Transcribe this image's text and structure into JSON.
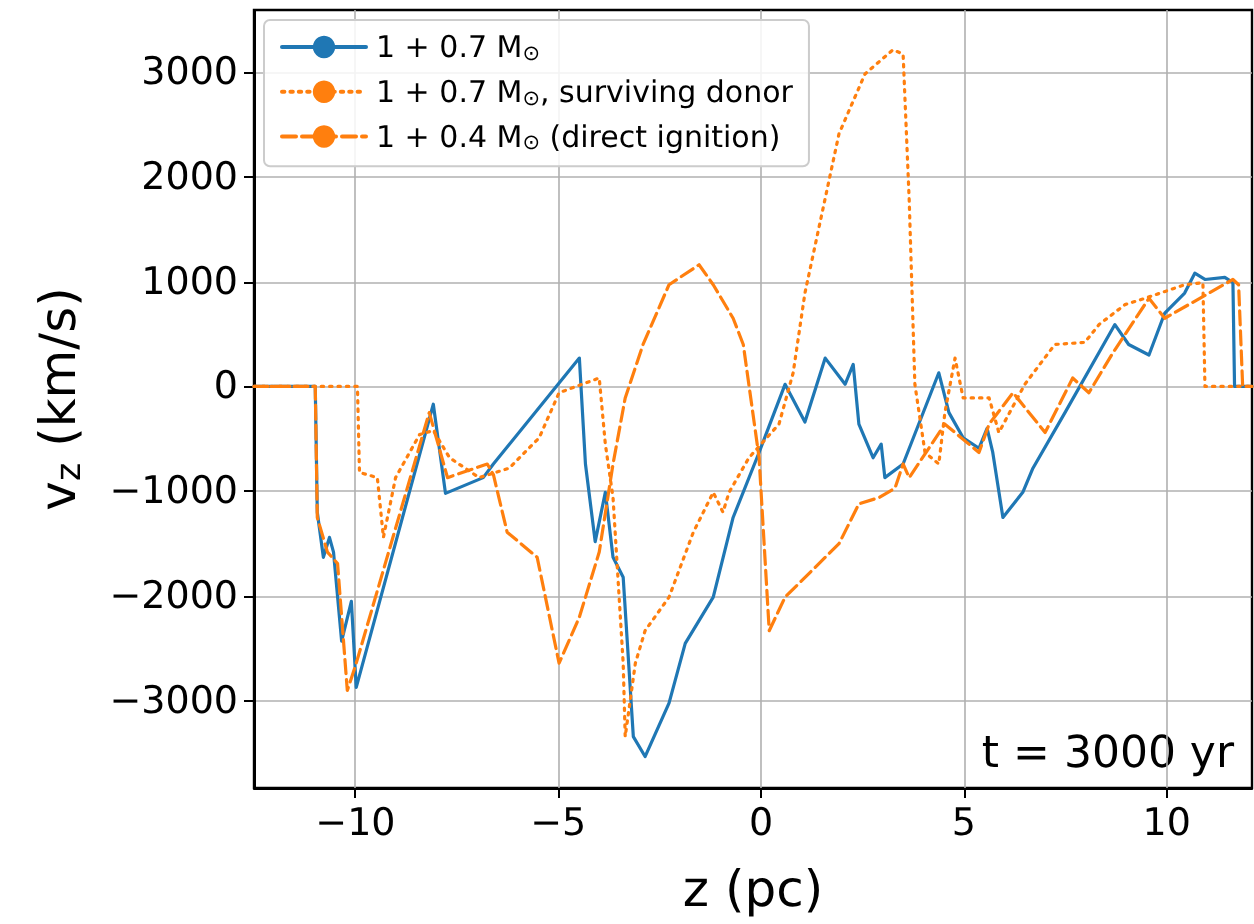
{
  "chart_data": {
    "type": "line",
    "xlabel": "z (pc)",
    "ylabel": "v$_{z}$ (km/s)",
    "xlim": [
      -12.5,
      12.1
    ],
    "xticks": [
      -10,
      -5,
      0,
      5,
      10
    ],
    "ylim": [
      -3830,
      3590
    ],
    "yticks": [
      -3000,
      -2000,
      -1000,
      0,
      1000,
      2000,
      3000
    ],
    "grid": true,
    "legend": "top left",
    "marker": "none",
    "annotations": [
      "t = 3000 yr"
    ],
    "series": [
      {
        "name": "1 + 0.7 M$_{⊙}$",
        "color": "#1f77b4",
        "line_style": "solid",
        "x": [
          -12.5,
          -10.99,
          -10.94,
          -10.79,
          -10.64,
          -10.54,
          -10.34,
          -10.1,
          -9.98,
          -8.08,
          -7.78,
          -6.85,
          -6.6,
          -4.48,
          -4.33,
          -4.09,
          -3.84,
          -3.65,
          -3.4,
          -3.15,
          -2.86,
          -2.27,
          -1.87,
          -1.18,
          -0.69,
          -0.05,
          0.59,
          1.08,
          1.58,
          2.07,
          2.27,
          2.41,
          2.76,
          2.96,
          3.05,
          3.5,
          4.38,
          4.63,
          4.98,
          5.37,
          5.57,
          5.71,
          5.96,
          6.45,
          6.7,
          7.49,
          8.72,
          9.06,
          9.56,
          9.95,
          10.44,
          10.69,
          10.94,
          11.43,
          11.63,
          11.67,
          12.1
        ],
        "values": [
          0,
          0,
          -1200,
          -1630,
          -1440,
          -1580,
          -2430,
          -2050,
          -2870,
          -170,
          -1020,
          -870,
          -740,
          270,
          -740,
          -1480,
          -1010,
          -1630,
          -1820,
          -3340,
          -3530,
          -3020,
          -2450,
          -2010,
          -1250,
          -630,
          20,
          -340,
          270,
          20,
          210,
          -360,
          -680,
          -550,
          -870,
          -740,
          130,
          -250,
          -490,
          -590,
          -400,
          -630,
          -1250,
          -1010,
          -780,
          -250,
          590,
          400,
          300,
          700,
          890,
          1080,
          1020,
          1040,
          990,
          0,
          0
        ]
      },
      {
        "name": "1 + 0.7 M$_{⊙}$, surviving donor",
        "color": "#ff7f0e",
        "line_style": "dotted",
        "x": [
          -12.5,
          -9.95,
          -9.9,
          -9.46,
          -9.31,
          -9.01,
          -8.42,
          -8.08,
          -7.68,
          -6.95,
          -6.21,
          -5.47,
          -4.98,
          -3.99,
          -3.84,
          -3.65,
          -3.4,
          -3.35,
          -3.1,
          -2.86,
          -2.27,
          -1.67,
          -1.18,
          -0.94,
          -0.79,
          -0.3,
          0.44,
          0.79,
          1.08,
          1.92,
          2.56,
          3.25,
          3.5,
          3.65,
          3.79,
          4.04,
          4.38,
          4.53,
          4.78,
          4.98,
          5.62,
          5.86,
          6.5,
          7.24,
          7.98,
          8.33,
          8.97,
          9.46,
          10.44,
          10.89,
          10.94,
          12.1
        ],
        "values": [
          0,
          0,
          -820,
          -870,
          -1440,
          -870,
          -460,
          -420,
          -680,
          -870,
          -780,
          -490,
          -60,
          80,
          -550,
          -1060,
          -2640,
          -3340,
          -2640,
          -2330,
          -2010,
          -1390,
          -1010,
          -1200,
          -1010,
          -680,
          -360,
          130,
          890,
          2410,
          2980,
          3210,
          3170,
          1780,
          20,
          -630,
          -740,
          -250,
          270,
          -110,
          -110,
          -440,
          20,
          400,
          420,
          590,
          780,
          840,
          970,
          990,
          0,
          0
        ]
      },
      {
        "name": "1 + 0.4 M$_{⊙}$ (direct ignition)",
        "color": "#ff7f0e",
        "line_style": "dashed",
        "x": [
          -12.5,
          -10.99,
          -10.94,
          -10.69,
          -10.44,
          -10.2,
          -9.98,
          -8.18,
          -7.73,
          -6.75,
          -6.6,
          -6.26,
          -5.52,
          -4.98,
          -4.48,
          -3.99,
          -3.65,
          -3.35,
          -2.91,
          -2.27,
          -1.53,
          -1.18,
          -0.69,
          -0.44,
          -0.05,
          0.2,
          0.59,
          1.92,
          2.41,
          2.91,
          3.3,
          3.5,
          3.65,
          4.53,
          5.37,
          5.62,
          6.21,
          7.0,
          7.68,
          8.08,
          8.67,
          9.56,
          9.95,
          10.54,
          11.63,
          11.77,
          11.87,
          12.1
        ],
        "values": [
          0,
          0,
          -1250,
          -1580,
          -1690,
          -2900,
          -2640,
          -250,
          -870,
          -740,
          -840,
          -1390,
          -1630,
          -2640,
          -2200,
          -1580,
          -740,
          -110,
          400,
          970,
          1160,
          970,
          650,
          400,
          -680,
          -2330,
          -2010,
          -1500,
          -1120,
          -1060,
          -970,
          -740,
          -870,
          -360,
          -630,
          -360,
          -60,
          -440,
          80,
          -60,
          320,
          840,
          650,
          780,
          1020,
          970,
          0,
          0
        ]
      }
    ]
  }
}
